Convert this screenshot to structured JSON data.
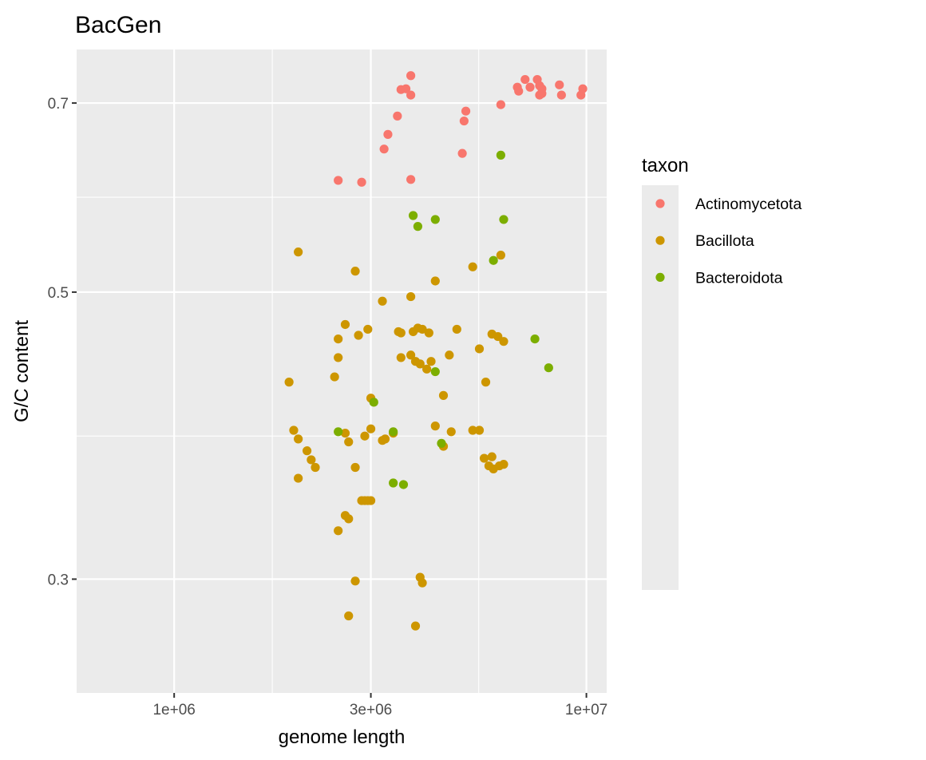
{
  "chart_data": {
    "type": "scatter",
    "title": "BacGen",
    "xlabel": "genome length",
    "ylabel": "G/C content",
    "x_scale": "log10",
    "y_scale": "log10",
    "xlim": [
      580000,
      11200000
    ],
    "ylim": [
      0.245,
      0.77
    ],
    "x_ticks": [
      {
        "value": 1000000,
        "label": "1e+06"
      },
      {
        "value": 3000000,
        "label": "3e+06"
      },
      {
        "value": 10000000,
        "label": "1e+07"
      }
    ],
    "x_minor_ticks": [
      1730000,
      5480000
    ],
    "y_ticks": [
      {
        "value": 0.3,
        "label": "0.3"
      },
      {
        "value": 0.5,
        "label": "0.5"
      },
      {
        "value": 0.7,
        "label": "0.7"
      }
    ],
    "y_minor_ticks": [
      0.387,
      0.592
    ],
    "grid": true,
    "panel_background": "#ebebeb",
    "grid_color": "#ffffff",
    "legend": {
      "title": "taxon",
      "position": "right"
    },
    "series": [
      {
        "name": "Actinomycetota",
        "color": "#F8766D",
        "points": [
          [
            3750000,
            0.735
          ],
          [
            3550000,
            0.717
          ],
          [
            3650000,
            0.718
          ],
          [
            3750000,
            0.71
          ],
          [
            5100000,
            0.69
          ],
          [
            5050000,
            0.678
          ],
          [
            3480000,
            0.684
          ],
          [
            3300000,
            0.662
          ],
          [
            3230000,
            0.645
          ],
          [
            5000000,
            0.64
          ],
          [
            3750000,
            0.611
          ],
          [
            2500000,
            0.61
          ],
          [
            2850000,
            0.608
          ],
          [
            6800000,
            0.72
          ],
          [
            7100000,
            0.73
          ],
          [
            6850000,
            0.715
          ],
          [
            7600000,
            0.73
          ],
          [
            7700000,
            0.722
          ],
          [
            7300000,
            0.72
          ],
          [
            7800000,
            0.718
          ],
          [
            7800000,
            0.712
          ],
          [
            8600000,
            0.723
          ],
          [
            7700000,
            0.71
          ],
          [
            9800000,
            0.718
          ],
          [
            9700000,
            0.71
          ],
          [
            6200000,
            0.698
          ],
          [
            8700000,
            0.71
          ]
        ]
      },
      {
        "name": "Bacillota",
        "color": "#CD9600",
        "points": [
          [
            2650000,
            0.281
          ],
          [
            2750000,
            0.299
          ],
          [
            3850000,
            0.276
          ],
          [
            3950000,
            0.301
          ],
          [
            4000000,
            0.298
          ],
          [
            2500000,
            0.327
          ],
          [
            2600000,
            0.336
          ],
          [
            2650000,
            0.334
          ],
          [
            2850000,
            0.345
          ],
          [
            2900000,
            0.345
          ],
          [
            2950000,
            0.345
          ],
          [
            3000000,
            0.345
          ],
          [
            2000000,
            0.359
          ],
          [
            2150000,
            0.371
          ],
          [
            2200000,
            0.366
          ],
          [
            2100000,
            0.377
          ],
          [
            2750000,
            0.366
          ],
          [
            2000000,
            0.385
          ],
          [
            1950000,
            0.391
          ],
          [
            2650000,
            0.383
          ],
          [
            2900000,
            0.387
          ],
          [
            3000000,
            0.392
          ],
          [
            3400000,
            0.389
          ],
          [
            3200000,
            0.384
          ],
          [
            3250000,
            0.385
          ],
          [
            4300000,
            0.394
          ],
          [
            4500000,
            0.38
          ],
          [
            4700000,
            0.39
          ],
          [
            5300000,
            0.391
          ],
          [
            5500000,
            0.391
          ],
          [
            5650000,
            0.372
          ],
          [
            5900000,
            0.373
          ],
          [
            5800000,
            0.367
          ],
          [
            5950000,
            0.365
          ],
          [
            6300000,
            0.368
          ],
          [
            6150000,
            0.367
          ],
          [
            1900000,
            0.426
          ],
          [
            2450000,
            0.43
          ],
          [
            2500000,
            0.445
          ],
          [
            2500000,
            0.46
          ],
          [
            2600000,
            0.472
          ],
          [
            3000000,
            0.414
          ],
          [
            2800000,
            0.463
          ],
          [
            2950000,
            0.468
          ],
          [
            3200000,
            0.492
          ],
          [
            3500000,
            0.466
          ],
          [
            3550000,
            0.465
          ],
          [
            3800000,
            0.466
          ],
          [
            3900000,
            0.469
          ],
          [
            4000000,
            0.468
          ],
          [
            4150000,
            0.465
          ],
          [
            3550000,
            0.445
          ],
          [
            3750000,
            0.447
          ],
          [
            3850000,
            0.442
          ],
          [
            3950000,
            0.44
          ],
          [
            4200000,
            0.442
          ],
          [
            4100000,
            0.436
          ],
          [
            4650000,
            0.447
          ],
          [
            4850000,
            0.468
          ],
          [
            4500000,
            0.416
          ],
          [
            5700000,
            0.426
          ],
          [
            5500000,
            0.452
          ],
          [
            5900000,
            0.464
          ],
          [
            6100000,
            0.462
          ],
          [
            6300000,
            0.458
          ],
          [
            3750000,
            0.496
          ],
          [
            4300000,
            0.51
          ],
          [
            2750000,
            0.519
          ],
          [
            2000000,
            0.537
          ],
          [
            5300000,
            0.523
          ],
          [
            6200000,
            0.534
          ],
          [
            2600000,
            0.389
          ]
        ]
      },
      {
        "name": "Bacteroidota",
        "color": "#7CAE00",
        "points": [
          [
            2500000,
            0.39
          ],
          [
            3050000,
            0.411
          ],
          [
            3400000,
            0.39
          ],
          [
            3400000,
            0.356
          ],
          [
            3600000,
            0.355
          ],
          [
            3900000,
            0.562
          ],
          [
            4300000,
            0.569
          ],
          [
            3800000,
            0.573
          ],
          [
            4450000,
            0.382
          ],
          [
            6200000,
            0.638
          ],
          [
            6300000,
            0.569
          ],
          [
            5950000,
            0.529
          ],
          [
            7500000,
            0.46
          ],
          [
            8100000,
            0.437
          ],
          [
            4300000,
            0.434
          ]
        ]
      }
    ]
  }
}
